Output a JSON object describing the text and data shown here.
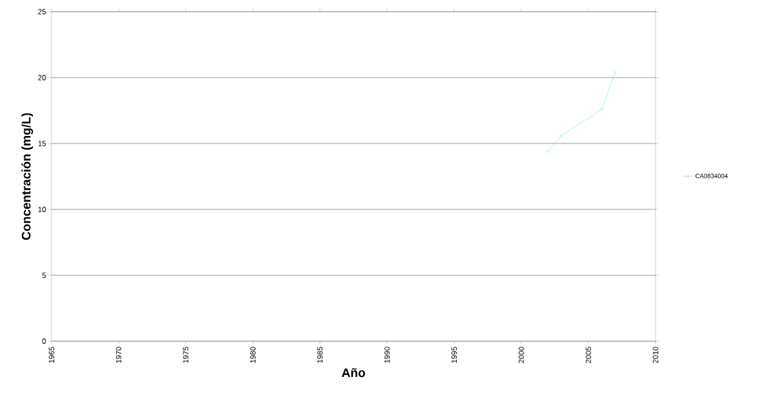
{
  "chart_data": {
    "type": "line",
    "xlabel": "Año",
    "ylabel": "Concentración (mg/L)",
    "xlim": [
      1965,
      2010
    ],
    "xticks": [
      1965,
      1970,
      1975,
      1980,
      1985,
      1990,
      1995,
      2000,
      2005,
      2010
    ],
    "ylim": [
      0,
      25
    ],
    "yticks": [
      0,
      5,
      10,
      15,
      20,
      25
    ],
    "grid": "y",
    "legend": "right",
    "marker": "cross",
    "line_style": "solid",
    "series": [
      {
        "name": "CA0834004",
        "color": "#40d8dc",
        "x": [
          2002,
          2003,
          2006,
          2007
        ],
        "values": [
          14.4,
          15.6,
          17.6,
          20.4
        ]
      }
    ]
  }
}
